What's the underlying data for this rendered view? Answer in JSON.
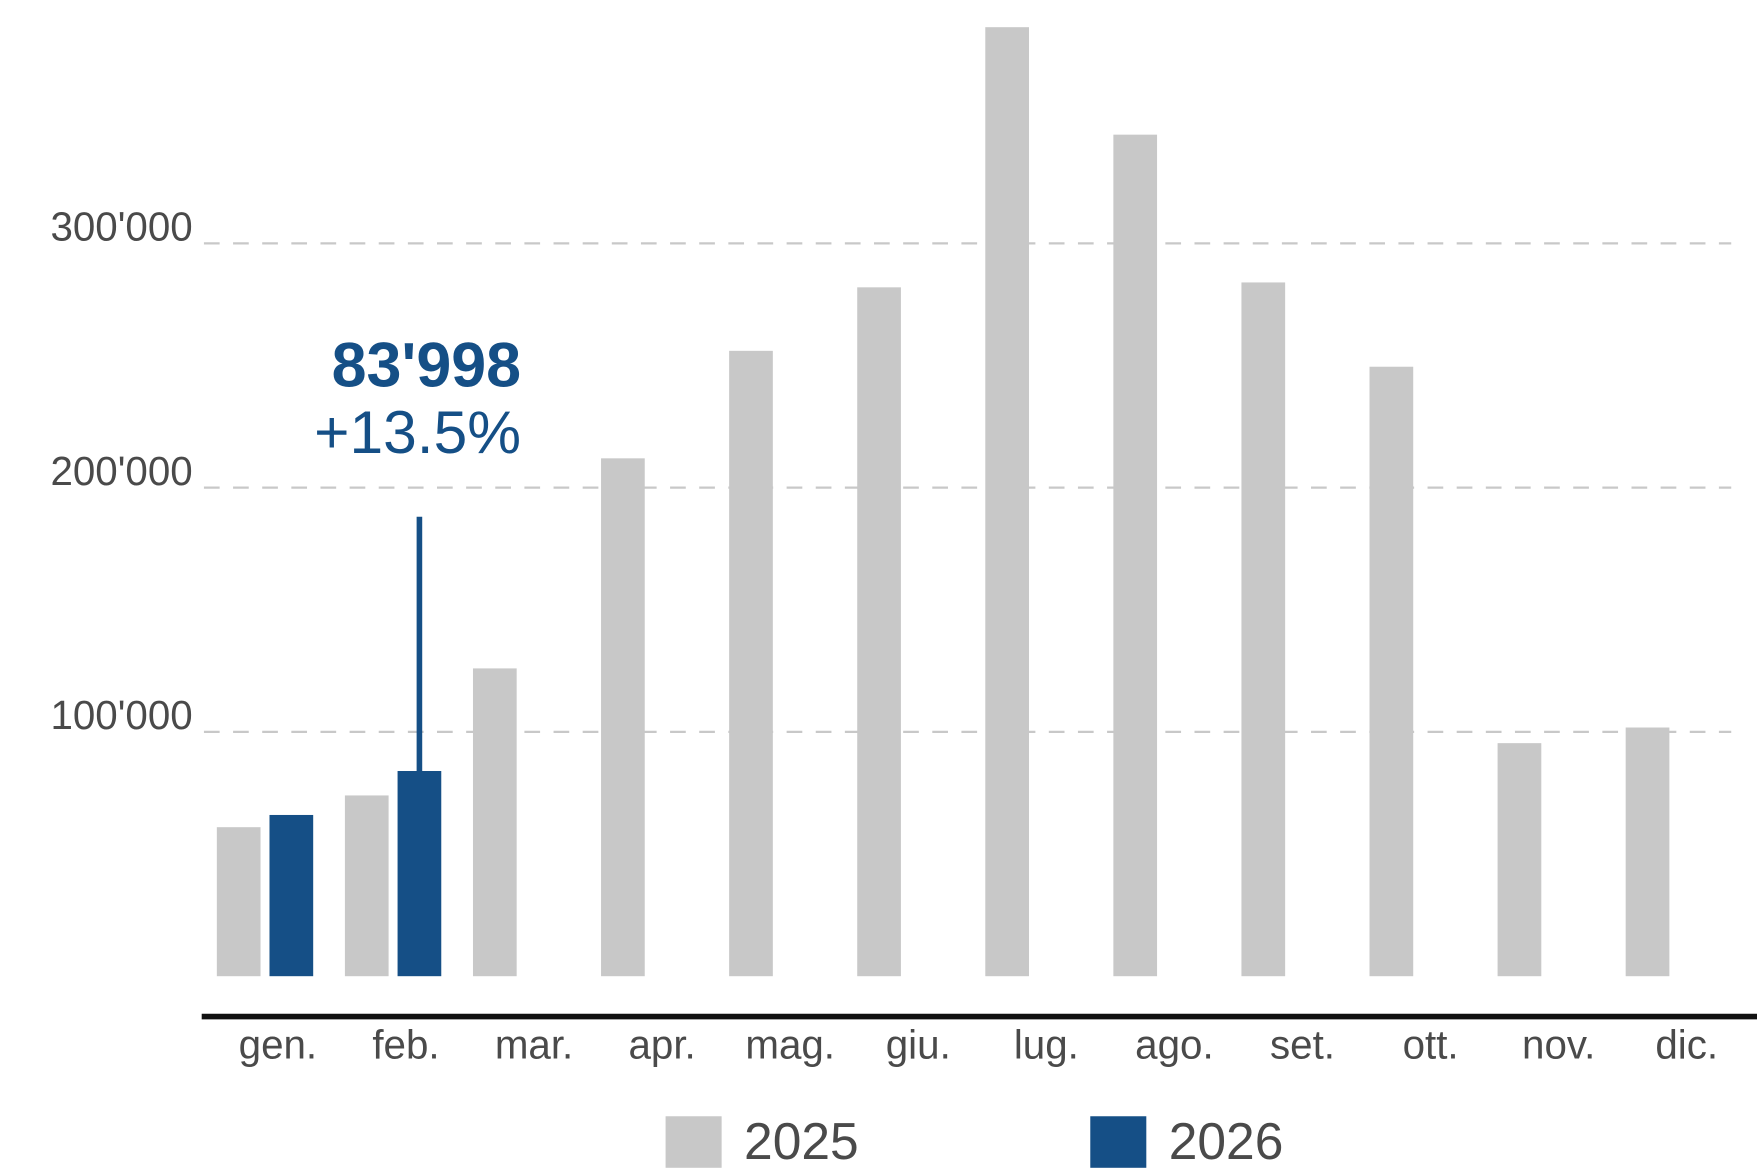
{
  "chart_data": {
    "type": "bar",
    "categories": [
      "gen.",
      "feb.",
      "mar.",
      "apr.",
      "mag.",
      "giu.",
      "lug.",
      "ago.",
      "set.",
      "ott.",
      "nov.",
      "dic."
    ],
    "series": [
      {
        "name": "2025",
        "color": "#c8c8c8",
        "values": [
          61000,
          74000,
          126000,
          212000,
          256000,
          282000,
          388500,
          344500,
          284000,
          249500,
          95400,
          101800
        ]
      },
      {
        "name": "2026",
        "color": "#154f86",
        "values": [
          66000,
          83998,
          null,
          null,
          null,
          null,
          null,
          null,
          null,
          null,
          null,
          null
        ]
      }
    ],
    "ylim": [
      0,
      390000
    ],
    "yticks": [
      {
        "value": 100000,
        "label": "100'000"
      },
      {
        "value": 200000,
        "label": "200'000"
      },
      {
        "value": 300000,
        "label": "300'000"
      }
    ],
    "grid": true,
    "annotation": {
      "value": "83'998",
      "change": "+13.5%"
    }
  }
}
